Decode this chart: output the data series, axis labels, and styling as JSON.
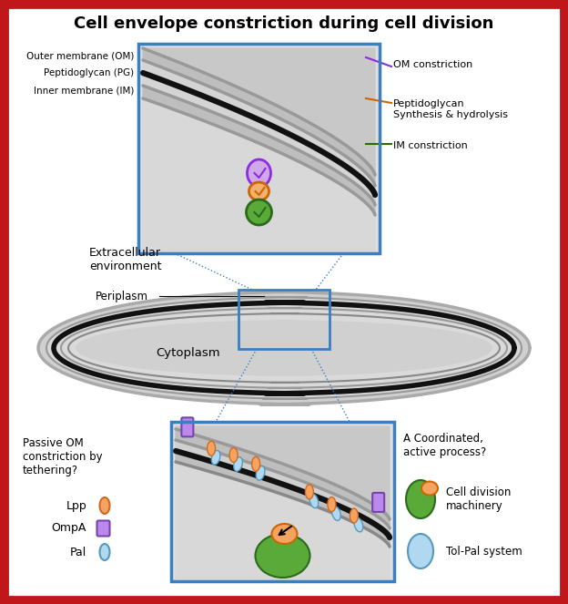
{
  "title": "Cell envelope constriction during cell division",
  "bg_color": "#ffffff",
  "border_color": "#c0181a",
  "label_outer_membrane": "Outer membrane (OM)",
  "label_peptidoglycan": "Peptidoglycan (PG)",
  "label_inner_membrane": "Inner membrane (IM)",
  "label_extracellular": "Extracellular\nenvironment",
  "label_periplasm": "Periplasm",
  "label_cytoplasm": "Cytoplasm",
  "label_om_constriction": "OM constriction",
  "label_peptidoglycan_synth": "Peptidoglycan\nSynthesis & hydrolysis",
  "label_im_constriction": "IM constriction",
  "label_passive": "Passive OM\nconstriction by\ntethering?",
  "label_coordinated": "A Coordinated,\nactive process?",
  "label_lpp": "Lpp",
  "label_ompa": "OmpA",
  "label_pal": "Pal",
  "label_cell_division": "Cell division\nmachinery",
  "label_tolpal": "Tol-Pal system",
  "colors": {
    "om_gray": "#999999",
    "pg_black": "#111111",
    "im_gray": "#999999",
    "fill_light": "#d8d8d8",
    "fill_mid": "#c8c8c8",
    "fill_dark": "#b8b8b8",
    "box_border": "#3a7fc1",
    "om_constriction_line": "#8b2be2",
    "pg_synth_line": "#cc6600",
    "im_constriction_line": "#2d6a00",
    "lpp_fill": "#f4a460",
    "lpp_edge": "#d2691e",
    "ompa_fill": "#bb88ee",
    "ompa_edge": "#7744aa",
    "pal_fill": "#b0d8f0",
    "pal_edge": "#5599bb",
    "green_blob": "#5aaa3a",
    "green_edge": "#2a6a1a",
    "orange_blob": "#f4a460",
    "orange_edge": "#cc6600",
    "purple_circle_fill": "#d0a8e8",
    "purple_circle_edge": "#8b2be2",
    "orange_circle_fill": "#f4b070",
    "orange_circle_edge": "#cc6600",
    "green_circle_fill": "#5aaa3a",
    "green_circle_edge": "#2a6a1a"
  }
}
